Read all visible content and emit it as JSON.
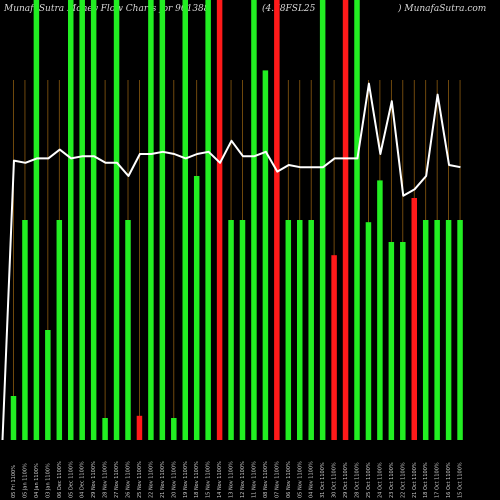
{
  "header": {
    "left": "MunafaSutra  Money Flow  Charts for 901388",
    "middle": "(4.78FSL25",
    "right": ") MunafaSutra.com"
  },
  "colors": {
    "background": "#000000",
    "up_bar": "#22ee22",
    "down_bar": "#ff1a1a",
    "grid": "#8a5a10",
    "line": "#ffffff"
  },
  "chart_data": {
    "type": "bar",
    "title": "MunafaSutra  Money Flow  Charts for 901388 (4.78FSL25 ) MunafaSutra.com",
    "categories": [
      "05 Fri 1100%",
      "05 Jan 1100%",
      "04 Jan 1100%",
      "03 Jan 1100%",
      "06 Dec 1100%",
      "05 Dec 1100%",
      "04 Dec 1100%",
      "29 Nov 1100%",
      "28 Nov 1100%",
      "27 Nov 1100%",
      "26 Nov 1100%",
      "25 Nov 1100%",
      "22 Nov 1100%",
      "21 Nov 1100%",
      "20 Nov 1100%",
      "19 Nov 1100%",
      "18 Nov 1100%",
      "15 Nov 1100%",
      "14 Nov 1100%",
      "13 Nov 1100%",
      "12 Nov 1100%",
      "11 Nov 1100%",
      "08 Nov 1100%",
      "07 Nov 1100%",
      "06 Nov 1100%",
      "05 Nov 1100%",
      "04 Nov 1100%",
      "31 Oct 1100%",
      "30 Oct 1100%",
      "29 Oct 1100%",
      "28 Oct 1100%",
      "25 Oct 1100%",
      "24 Oct 1100%",
      "23 Oct 1100%",
      "22 Oct 1100%",
      "21 Oct 1100%",
      "18 Oct 1100%",
      "17 Oct 1100%",
      "16 Oct 1100%",
      "15 Oct 1100%"
    ],
    "bars": [
      {
        "value": 10,
        "color": "green"
      },
      {
        "value": 50,
        "color": "green"
      },
      {
        "value": 100,
        "color": "green"
      },
      {
        "value": 25,
        "color": "green"
      },
      {
        "value": 50,
        "color": "green"
      },
      {
        "value": 100,
        "color": "green"
      },
      {
        "value": 100,
        "color": "green"
      },
      {
        "value": 100,
        "color": "green"
      },
      {
        "value": 5,
        "color": "green"
      },
      {
        "value": 100,
        "color": "green"
      },
      {
        "value": 50,
        "color": "green"
      },
      {
        "value": 5.5,
        "color": "red"
      },
      {
        "value": 100,
        "color": "green"
      },
      {
        "value": 100,
        "color": "green"
      },
      {
        "value": 5,
        "color": "green"
      },
      {
        "value": 100,
        "color": "green"
      },
      {
        "value": 60,
        "color": "green"
      },
      {
        "value": 100,
        "color": "green"
      },
      {
        "value": 100,
        "color": "red"
      },
      {
        "value": 50,
        "color": "green"
      },
      {
        "value": 50,
        "color": "green"
      },
      {
        "value": 100,
        "color": "green"
      },
      {
        "value": 84,
        "color": "green"
      },
      {
        "value": 100,
        "color": "red"
      },
      {
        "value": 50,
        "color": "green"
      },
      {
        "value": 50,
        "color": "green"
      },
      {
        "value": 50,
        "color": "green"
      },
      {
        "value": 100,
        "color": "green"
      },
      {
        "value": 42,
        "color": "red"
      },
      {
        "value": 100,
        "color": "red"
      },
      {
        "value": 100,
        "color": "green"
      },
      {
        "value": 49.5,
        "color": "green"
      },
      {
        "value": 59,
        "color": "green"
      },
      {
        "value": 45,
        "color": "green"
      },
      {
        "value": 45,
        "color": "green"
      },
      {
        "value": 55,
        "color": "red"
      },
      {
        "value": 50,
        "color": "green"
      },
      {
        "value": 50,
        "color": "green"
      },
      {
        "value": 50,
        "color": "green"
      },
      {
        "value": 50,
        "color": "green"
      }
    ],
    "line": [
      {
        "x": 0,
        "y": 0
      },
      {
        "x": 1,
        "y": 63.5
      },
      {
        "x": 2,
        "y": 63
      },
      {
        "x": 3,
        "y": 64
      },
      {
        "x": 4,
        "y": 64
      },
      {
        "x": 5,
        "y": 66
      },
      {
        "x": 6,
        "y": 64
      },
      {
        "x": 7,
        "y": 64.5
      },
      {
        "x": 8,
        "y": 64.5
      },
      {
        "x": 9,
        "y": 63
      },
      {
        "x": 10,
        "y": 63
      },
      {
        "x": 11,
        "y": 60
      },
      {
        "x": 12,
        "y": 65
      },
      {
        "x": 13,
        "y": 65
      },
      {
        "x": 14,
        "y": 65.5
      },
      {
        "x": 15,
        "y": 65
      },
      {
        "x": 16,
        "y": 64
      },
      {
        "x": 17,
        "y": 65
      },
      {
        "x": 18,
        "y": 65.5
      },
      {
        "x": 19,
        "y": 63
      },
      {
        "x": 20,
        "y": 68
      },
      {
        "x": 21,
        "y": 64.5
      },
      {
        "x": 22,
        "y": 64.5
      },
      {
        "x": 23,
        "y": 65.5
      },
      {
        "x": 24,
        "y": 61
      },
      {
        "x": 25,
        "y": 62.5
      },
      {
        "x": 26,
        "y": 62
      },
      {
        "x": 27,
        "y": 62
      },
      {
        "x": 28,
        "y": 62
      },
      {
        "x": 29,
        "y": 64
      },
      {
        "x": 30,
        "y": 64
      },
      {
        "x": 31,
        "y": 64
      },
      {
        "x": 32,
        "y": 81
      },
      {
        "x": 33,
        "y": 65
      },
      {
        "x": 34,
        "y": 77
      },
      {
        "x": 35,
        "y": 55.5
      },
      {
        "x": 36,
        "y": 57
      },
      {
        "x": 37,
        "y": 60
      },
      {
        "x": 38,
        "y": 78.5
      },
      {
        "x": 39,
        "y": 62.5
      },
      {
        "x": 40,
        "y": 62
      }
    ],
    "ylim": [
      0,
      100
    ],
    "grid": true,
    "xlabel": "",
    "ylabel": ""
  }
}
